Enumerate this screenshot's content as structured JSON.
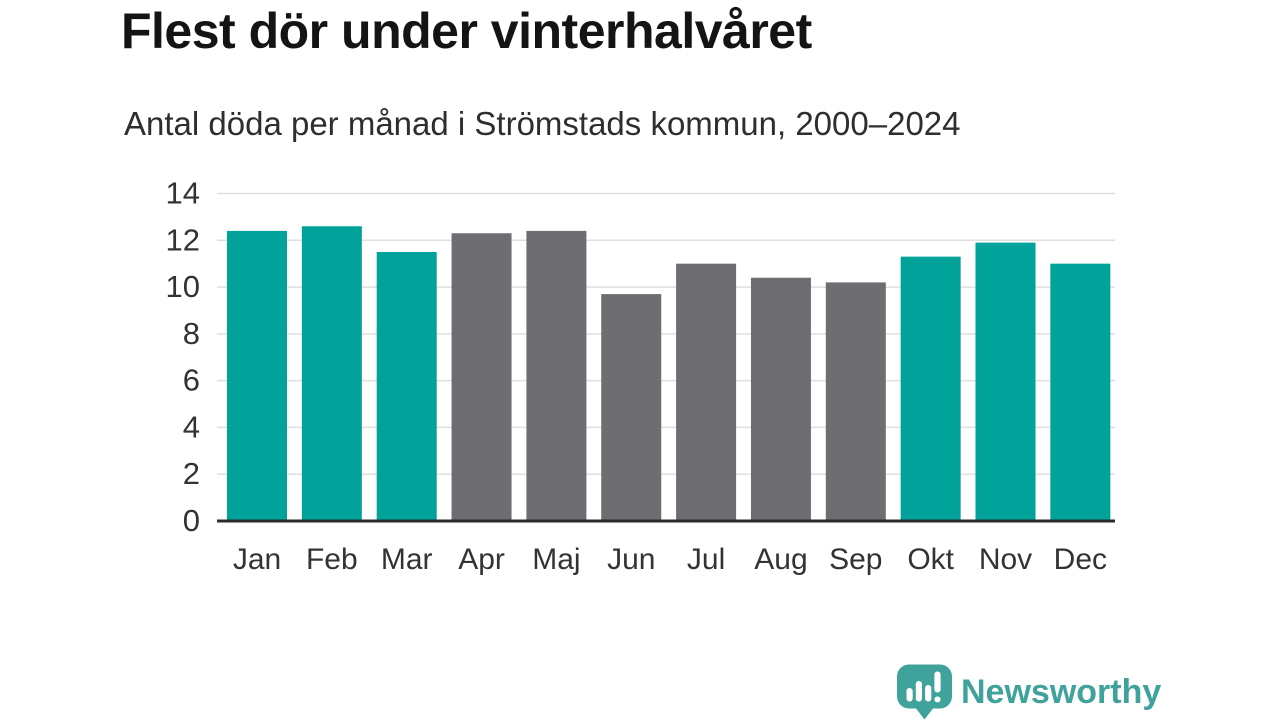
{
  "header": {
    "title": "Flest dör under vinterhalvåret",
    "subtitle": "Antal döda per månad i Strömstads kommun, 2000–2024"
  },
  "chart_data": {
    "type": "bar",
    "title": "Flest dör under vinterhalvåret",
    "subtitle": "Antal döda per månad i Strömstads kommun, 2000–2024",
    "categories": [
      "Jan",
      "Feb",
      "Mar",
      "Apr",
      "Maj",
      "Jun",
      "Jul",
      "Aug",
      "Sep",
      "Okt",
      "Nov",
      "Dec"
    ],
    "values": [
      12.4,
      12.6,
      11.5,
      12.3,
      12.4,
      9.7,
      11.0,
      10.4,
      10.2,
      11.3,
      11.9,
      11.0
    ],
    "xlabel": "",
    "ylabel": "",
    "ylim": [
      0,
      14
    ],
    "yticks": [
      0,
      2,
      4,
      6,
      8,
      10,
      12,
      14
    ],
    "grid": true,
    "legend": "none",
    "colors": {
      "winter_highlight": "#00A299",
      "summer_muted": "#6E6E72"
    },
    "bar_color_keys": [
      "winter_highlight",
      "winter_highlight",
      "winter_highlight",
      "summer_muted",
      "summer_muted",
      "summer_muted",
      "summer_muted",
      "summer_muted",
      "summer_muted",
      "winter_highlight",
      "winter_highlight",
      "winter_highlight"
    ],
    "grid_color": "#DFDFDF",
    "axis_color": "#2B2B2B",
    "tick_label_color": "#333333"
  },
  "footer": {
    "brand": "Newsworthy",
    "brand_color": "#3FA29B",
    "logo_icon": "bar-chart-speech-bubble-icon"
  }
}
